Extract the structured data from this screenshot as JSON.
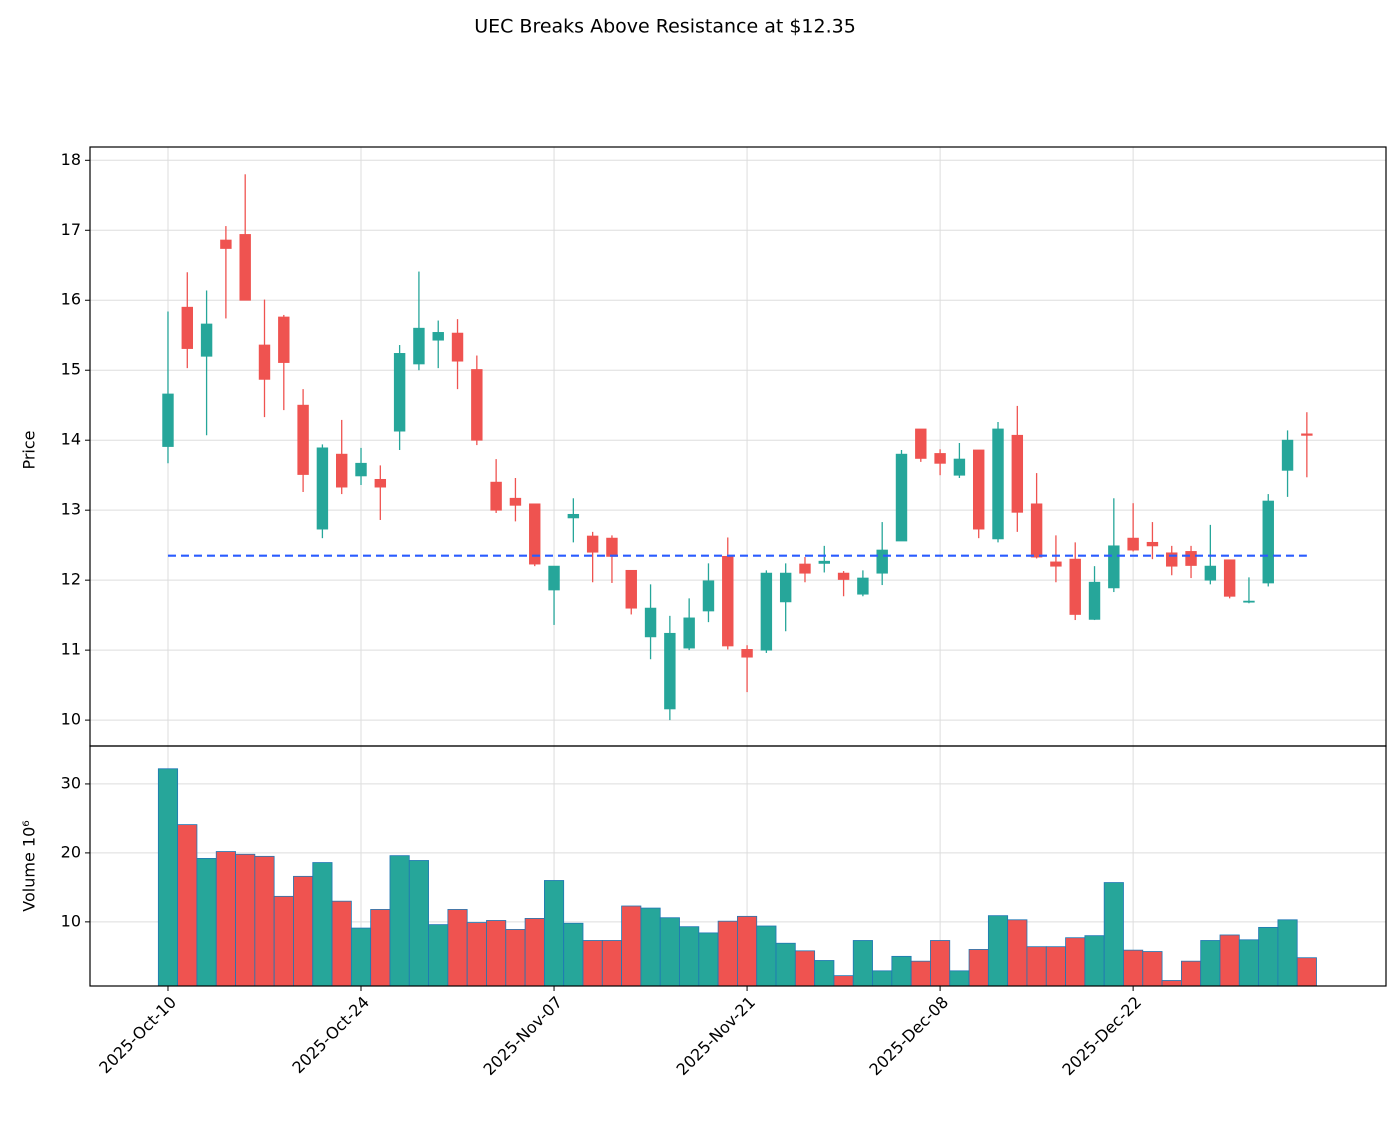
{
  "chart_data": {
    "type": "candlestick",
    "title": "UEC Breaks Above Resistance at $12.35",
    "ylabel": "Price",
    "volume_label": "Volume  10⁶",
    "categories": [
      "2025-Oct-10",
      null,
      null,
      null,
      null,
      null,
      null,
      null,
      null,
      null,
      "2025-Oct-24",
      null,
      null,
      null,
      null,
      null,
      null,
      null,
      null,
      null,
      "2025-Nov-07",
      null,
      null,
      null,
      null,
      null,
      null,
      null,
      null,
      null,
      "2025-Nov-21",
      null,
      null,
      null,
      null,
      null,
      null,
      null,
      null,
      null,
      "2025-Dec-08",
      null,
      null,
      null,
      null,
      null,
      null,
      null,
      null,
      null,
      "2025-Dec-22",
      null,
      null,
      null,
      null,
      null,
      null,
      null,
      null,
      null
    ],
    "xlim": [
      -4.04,
      63.1
    ],
    "open": [
      13.91,
      15.9,
      15.2,
      16.86,
      16.94,
      15.36,
      15.76,
      14.5,
      12.73,
      13.8,
      13.49,
      13.44,
      14.13,
      15.09,
      15.43,
      15.53,
      15.01,
      13.4,
      13.17,
      13.09,
      11.86,
      12.89,
      12.63,
      12.6,
      12.14,
      11.19,
      10.16,
      11.03,
      11.56,
      12.34,
      11.01,
      11.0,
      11.69,
      12.23,
      12.24,
      12.1,
      11.8,
      12.1,
      12.56,
      14.16,
      13.81,
      13.5,
      13.86,
      12.59,
      14.07,
      13.09,
      12.26,
      12.3,
      11.44,
      11.89,
      12.6,
      12.54,
      12.39,
      12.41,
      12.0,
      12.29,
      11.69,
      11.96,
      13.57,
      14.09
    ],
    "high": [
      15.84,
      16.4,
      16.14,
      17.06,
      17.8,
      16.01,
      15.79,
      14.73,
      13.94,
      14.29,
      13.89,
      13.64,
      15.36,
      16.41,
      15.71,
      15.73,
      15.21,
      13.73,
      13.46,
      13.09,
      12.2,
      13.17,
      12.69,
      12.64,
      12.14,
      11.94,
      11.49,
      11.74,
      12.24,
      12.61,
      11.07,
      12.14,
      12.24,
      12.33,
      12.49,
      12.13,
      12.14,
      12.83,
      13.86,
      14.16,
      13.87,
      13.96,
      13.86,
      14.26,
      14.49,
      13.53,
      12.64,
      12.54,
      12.2,
      13.17,
      13.1,
      12.83,
      12.49,
      12.49,
      12.79,
      12.29,
      12.04,
      13.23,
      14.14,
      14.4
    ],
    "low": [
      13.67,
      15.03,
      14.07,
      15.74,
      16.0,
      14.33,
      14.43,
      13.26,
      12.6,
      13.23,
      13.36,
      12.86,
      13.86,
      15.0,
      15.03,
      14.73,
      13.93,
      12.96,
      12.84,
      12.2,
      11.36,
      12.54,
      11.97,
      11.96,
      11.51,
      10.87,
      10.0,
      11.0,
      11.4,
      11.01,
      10.4,
      10.96,
      11.27,
      11.97,
      12.11,
      11.77,
      11.77,
      11.93,
      12.56,
      13.69,
      13.5,
      13.46,
      12.6,
      12.54,
      12.69,
      12.31,
      11.97,
      11.43,
      11.43,
      11.83,
      12.41,
      12.3,
      12.07,
      12.03,
      11.94,
      11.74,
      11.67,
      11.91,
      13.19,
      13.47
    ],
    "close": [
      14.66,
      15.31,
      15.66,
      16.74,
      16.0,
      14.87,
      15.11,
      13.51,
      13.89,
      13.33,
      13.67,
      13.33,
      15.24,
      15.6,
      15.54,
      15.13,
      14.0,
      13.0,
      13.07,
      12.23,
      12.2,
      12.94,
      12.4,
      12.34,
      11.6,
      11.6,
      11.24,
      11.46,
      11.99,
      11.06,
      10.9,
      12.1,
      12.1,
      12.1,
      12.27,
      12.01,
      12.03,
      12.43,
      13.8,
      13.74,
      13.67,
      13.73,
      12.73,
      14.16,
      12.97,
      12.33,
      12.2,
      11.51,
      11.97,
      12.49,
      12.43,
      12.49,
      12.2,
      12.21,
      12.2,
      11.77,
      11.7,
      13.13,
      14.0,
      14.07
    ],
    "volume": [
      32.2,
      24.1,
      19.2,
      20.2,
      19.8,
      19.5,
      13.7,
      16.6,
      18.6,
      13.0,
      9.1,
      11.8,
      19.6,
      18.9,
      9.6,
      11.8,
      9.9,
      10.2,
      8.9,
      10.5,
      16.0,
      9.8,
      7.3,
      7.3,
      12.3,
      12.0,
      10.6,
      9.3,
      8.4,
      10.1,
      10.8,
      9.4,
      6.9,
      5.8,
      4.4,
      2.2,
      7.3,
      2.9,
      5.0,
      4.3,
      7.3,
      2.9,
      6.0,
      10.9,
      10.3,
      6.4,
      6.4,
      7.7,
      8.0,
      15.7,
      5.9,
      5.7,
      1.5,
      4.3,
      7.3,
      8.1,
      7.4,
      9.2,
      10.3,
      4.8
    ],
    "up_color": "#26a69a",
    "down_color": "#ef5350",
    "ylim": [
      9.63,
      18.19
    ],
    "yticks": [
      10,
      11,
      12,
      13,
      14,
      15,
      16,
      17,
      18
    ],
    "volume_ylim": [
      0.7,
      35.5
    ],
    "volume_yticks": [
      10,
      20,
      30
    ],
    "resistance": 12.35,
    "resistance_color": "#2a5cff",
    "grid": true
  }
}
